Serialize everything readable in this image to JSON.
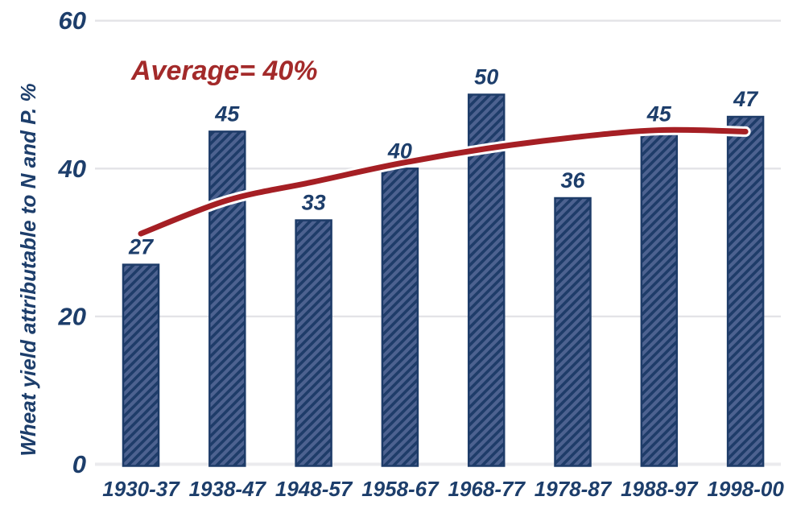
{
  "chart_data": {
    "type": "bar",
    "title": "",
    "categories": [
      "1930-37",
      "1938-47",
      "1948-57",
      "1958-67",
      "1968-77",
      "1978-87",
      "1988-97",
      "1998-00"
    ],
    "values": [
      27,
      45,
      33,
      40,
      50,
      36,
      45,
      47
    ],
    "value_labels": [
      "27",
      "45",
      "33",
      "40",
      "50",
      "36",
      "45",
      "47"
    ],
    "xlabel": "",
    "ylabel": "Wheat yield attributable to N and P. %",
    "yticks": [
      0,
      20,
      40,
      60
    ],
    "ytick_labels": [
      "0",
      "20",
      "40",
      "60"
    ],
    "ylim": [
      0,
      60
    ],
    "grid": "horizontal",
    "legend": "none",
    "annotation": "Average= 40%",
    "series": [
      {
        "name": "wheat-yield-bars",
        "type": "bar",
        "values": [
          27,
          45,
          33,
          40,
          50,
          36,
          45,
          47
        ]
      },
      {
        "name": "average-trend-line",
        "type": "line",
        "values": [
          31.2,
          35.7,
          38.2,
          40.7,
          42.7,
          44.2,
          45.2,
          45.0
        ]
      }
    ],
    "colors": {
      "bar_fill": "#4d6290",
      "bar_hatch": "#1e3c69",
      "bar_border": "#1e3c69",
      "trend_line": "#a51f24",
      "trend_casing": "#ffffff",
      "text": "#1d3e6b",
      "annotation_red": "#a32a2a",
      "gridline": "#e3e3e7",
      "baseline": "#ebebee",
      "background": "#ffffff"
    }
  }
}
